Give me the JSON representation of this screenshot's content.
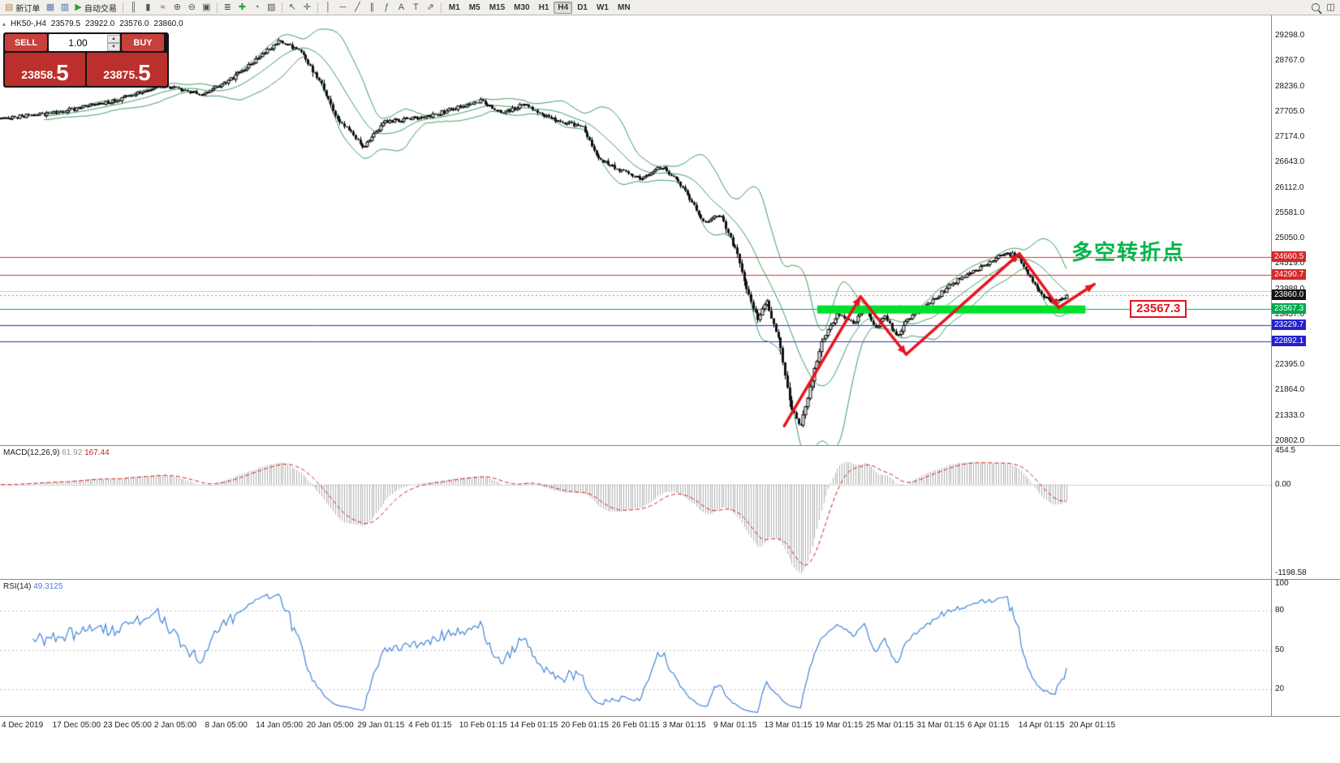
{
  "toolbar": {
    "items": [
      {
        "name": "new-order",
        "glyph": "▤",
        "glyph_color": "#b08c4a",
        "label": "新订单"
      },
      {
        "name": "charts",
        "glyph": "▦",
        "glyph_color": "#5a78a0"
      },
      {
        "name": "market-watch",
        "glyph": "▥",
        "glyph_color": "#3a6ea8"
      },
      {
        "name": "auto-trading",
        "glyph": "▶",
        "glyph_color": "#2aa52a",
        "label": "自动交易"
      },
      {
        "type": "sep"
      },
      {
        "name": "bars-mode",
        "glyph": "║",
        "glyph_color": "#555"
      },
      {
        "name": "candles-mode",
        "glyph": "▮",
        "glyph_color": "#555"
      },
      {
        "name": "line-mode",
        "glyph": "≈",
        "glyph_color": "#555"
      },
      {
        "name": "zoom-in",
        "glyph": "⊕",
        "glyph_color": "#555"
      },
      {
        "name": "zoom-out",
        "glyph": "⊖",
        "glyph_color": "#555"
      },
      {
        "name": "tile-windows",
        "glyph": "▣",
        "glyph_color": "#555"
      },
      {
        "type": "sep"
      },
      {
        "name": "indicators",
        "glyph": "≣",
        "glyph_color": "#555"
      },
      {
        "name": "add-indicator",
        "glyph": "✚",
        "glyph_color": "#2aa52a"
      },
      {
        "name": "period",
        "glyph": "◔",
        "glyph_color": "#555"
      },
      {
        "name": "template",
        "glyph": "▨",
        "glyph_color": "#555"
      },
      {
        "type": "sep"
      },
      {
        "name": "cursor",
        "glyph": "↖",
        "glyph_color": "#555"
      },
      {
        "name": "crosshair",
        "glyph": "✛",
        "glyph_color": "#555"
      },
      {
        "type": "sep"
      },
      {
        "name": "vline-tool",
        "glyph": "│",
        "glyph_color": "#555"
      },
      {
        "name": "hline-tool",
        "glyph": "─",
        "glyph_color": "#555"
      },
      {
        "name": "trendline-tool",
        "glyph": "╱",
        "glyph_color": "#555"
      },
      {
        "name": "channel-tool",
        "glyph": "∥",
        "glyph_color": "#555"
      },
      {
        "name": "fibonacci-tool",
        "glyph": "ƒ",
        "glyph_color": "#555"
      },
      {
        "name": "text-tool",
        "glyph": "A",
        "glyph_color": "#555"
      },
      {
        "name": "label-tool",
        "glyph": "T",
        "glyph_color": "#555"
      },
      {
        "name": "arrows-tool",
        "glyph": "⇗",
        "glyph_color": "#555"
      },
      {
        "type": "sep"
      }
    ],
    "timeframes": [
      {
        "label": "M1"
      },
      {
        "label": "M5"
      },
      {
        "label": "M15"
      },
      {
        "label": "M30"
      },
      {
        "label": "H1"
      },
      {
        "label": "H4",
        "active": true
      },
      {
        "label": "D1"
      },
      {
        "label": "W1"
      },
      {
        "label": "MN"
      }
    ],
    "right_items": [
      {
        "name": "search",
        "css": "search"
      },
      {
        "name": "new-window",
        "glyph": "◫"
      }
    ]
  },
  "one_click": {
    "collapse_icon": "▴",
    "sell_label": "SELL",
    "buy_label": "BUY",
    "volume": "1.00",
    "spin_up_icon": "▲",
    "spin_down_icon": "▼",
    "sell_price_main": "23858.",
    "sell_price_frac": "5",
    "buy_price_main": "23875.",
    "buy_price_frac": "5"
  },
  "chart_data": {
    "type": "candlestick",
    "symbol_period": "HK50-,H4",
    "ohlc": {
      "open": "23579.5",
      "high": "23922.0",
      "low": "23576.0",
      "close": "23860.0"
    },
    "bid": "23858.5",
    "ask": "23875.5",
    "y_axis": {
      "price_top": 29723,
      "price_bottom": 20717,
      "ticks": [
        29298,
        28767,
        28236,
        27705,
        27174,
        26643,
        26112,
        25581,
        25050,
        24519,
        23988,
        23457,
        22926,
        22395,
        21864,
        21333,
        20802
      ]
    },
    "candles": {
      "count": 470,
      "area_frac": 0.84,
      "seed": 9,
      "noise": 42,
      "anchors": [
        [
          0.0,
          27560
        ],
        [
          0.05,
          27680
        ],
        [
          0.1,
          27900
        ],
        [
          0.15,
          28250
        ],
        [
          0.19,
          28050
        ],
        [
          0.22,
          28450
        ],
        [
          0.26,
          29180
        ],
        [
          0.28,
          28980
        ],
        [
          0.3,
          28300
        ],
        [
          0.315,
          27560
        ],
        [
          0.34,
          26980
        ],
        [
          0.36,
          27480
        ],
        [
          0.4,
          27600
        ],
        [
          0.43,
          27800
        ],
        [
          0.45,
          27920
        ],
        [
          0.47,
          27660
        ],
        [
          0.49,
          27860
        ],
        [
          0.52,
          27520
        ],
        [
          0.545,
          27400
        ],
        [
          0.56,
          26720
        ],
        [
          0.58,
          26500
        ],
        [
          0.6,
          26300
        ],
        [
          0.62,
          26560
        ],
        [
          0.64,
          26100
        ],
        [
          0.66,
          25350
        ],
        [
          0.675,
          25550
        ],
        [
          0.69,
          24750
        ],
        [
          0.7,
          23950
        ],
        [
          0.71,
          23350
        ],
        [
          0.718,
          23750
        ],
        [
          0.73,
          22900
        ],
        [
          0.74,
          21600
        ],
        [
          0.75,
          21060
        ],
        [
          0.76,
          22000
        ],
        [
          0.77,
          22880
        ],
        [
          0.785,
          23480
        ],
        [
          0.8,
          23250
        ],
        [
          0.81,
          23650
        ],
        [
          0.82,
          23150
        ],
        [
          0.83,
          23400
        ],
        [
          0.84,
          22980
        ],
        [
          0.85,
          23320
        ],
        [
          0.86,
          23520
        ],
        [
          0.875,
          23760
        ],
        [
          0.89,
          24060
        ],
        [
          0.905,
          24280
        ],
        [
          0.92,
          24430
        ],
        [
          0.938,
          24690
        ],
        [
          0.952,
          24730
        ],
        [
          0.965,
          24250
        ],
        [
          0.976,
          23900
        ],
        [
          0.987,
          23680
        ],
        [
          1.0,
          23860
        ]
      ]
    },
    "bollinger": {
      "period": 20,
      "deviation": 2,
      "color": "#3c9c64"
    },
    "levels": [
      {
        "price": 24660.5,
        "label": "24660.5",
        "line": "#e03030",
        "tag": "#d22a2a"
      },
      {
        "price": 24290.7,
        "label": "24290.7",
        "line": "#e03030",
        "tag": "#d22a2a"
      },
      {
        "price": 23952.0,
        "line": "#c6c6c6"
      },
      {
        "price": 23860.0,
        "label": "23860.0",
        "line": "#909090",
        "tag": "#141414",
        "dotted": true
      },
      {
        "price": 23567.3,
        "label": "23567.3",
        "line": "#00b050",
        "tag": "#00a94d"
      },
      {
        "price": 23229.7,
        "label": "23229.7",
        "line": "#2a2ae0",
        "tag": "#2222cc"
      },
      {
        "price": 22892.1,
        "label": "22892.1",
        "line": "#2a2ae0",
        "tag": "#2222cc"
      }
    ],
    "support_zone": {
      "x1_frac": 0.643,
      "x2_frac": 0.854,
      "price": 23560,
      "thickness": 10,
      "color": "#00e02e"
    },
    "trend_arrows": {
      "color": "#e8141e",
      "width": 3.5,
      "points": [
        [
          0.617,
          21120
        ],
        [
          0.677,
          23830
        ],
        [
          0.713,
          22620
        ],
        [
          0.802,
          24730
        ],
        [
          0.833,
          23600
        ],
        [
          0.861,
          24090
        ]
      ]
    },
    "annotations": {
      "turning_point": {
        "text": "多空转折点",
        "color": "#00b54a",
        "x_frac": 0.843,
        "price": 25100
      },
      "support_price": {
        "text": "23567.3",
        "color": "#e31220",
        "x_frac": 0.889,
        "price": 23567.3
      }
    },
    "macd": {
      "label": "MACD(12,26,9)",
      "value_main": "61.92",
      "value_signal": "167.44",
      "fast": 12,
      "slow": 26,
      "signal": 9,
      "ticks": [
        "454.5",
        "0.00",
        "-1198.58"
      ],
      "hist_color": "#b0b0b0",
      "signal_color": "#d42020"
    },
    "rsi": {
      "label": "RSI(14)",
      "value": "49.3125",
      "period": 14,
      "ticks": [
        "100",
        "80",
        "50",
        "20"
      ],
      "levels": [
        80,
        50,
        20
      ],
      "color": "#4285d8"
    },
    "time_axis": [
      "4 Dec 2019",
      "17 Dec 05:00",
      "23 Dec 05:00",
      "2 Jan 05:00",
      "8 Jan 05:00",
      "14 Jan 05:00",
      "20 Jan 05:00",
      "29 Jan 01:15",
      "4 Feb 01:15",
      "10 Feb 01:15",
      "14 Feb 01:15",
      "20 Feb 01:15",
      "26 Feb 01:15",
      "3 Mar 01:15",
      "9 Mar 01:15",
      "13 Mar 01:15",
      "19 Mar 01:15",
      "25 Mar 01:15",
      "31 Mar 01:15",
      "6 Apr 01:15",
      "14 Apr 01:15",
      "20 Apr 01:15"
    ]
  }
}
